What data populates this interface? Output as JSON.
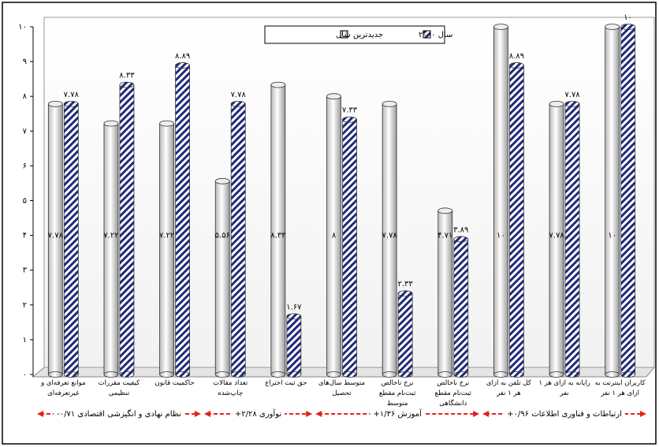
{
  "chart_data": {
    "type": "bar",
    "categories": [
      "موانع تعرفه‌ای و غیرتعرفه‌ای",
      "کیفیت مقررات تنظیمی",
      "حاکمیت قانون",
      "تعداد مقالات چاپ‌شده",
      "حق ثبت اختراع",
      "متوسط سال‌های تحصیل",
      "نرخ ناخالص ثبت‌نام مقطع متوسط",
      "نرخ ناخالص ثبت‌نام مقطع دانشگاهی",
      "کل تلفن به ازای هر ۱ نفر",
      "رایانه به ازای هر ۱ نفر",
      "کاربران اینترنت به ازای هر ۱ نفر"
    ],
    "series": [
      {
        "name": "جدیدترین سال",
        "color": "#ffffff",
        "values": [
          7.78,
          7.22,
          7.22,
          5.56,
          8.33,
          8,
          7.78,
          4.71,
          10,
          7.78,
          10
        ],
        "value_labels": [
          "۷.۷۸",
          "۷.۲۲",
          "۷.۲۲",
          "۵.۵۶",
          "۸.۳۳",
          "۸",
          "۷.۷۸",
          "۴.۷۱",
          "۱۰",
          "۷.۷۸",
          "۱۰"
        ]
      },
      {
        "name": "سال ۲۰۰۰",
        "color": "#1f2a7a",
        "values": [
          7.78,
          8.33,
          8.89,
          7.78,
          1.67,
          7.33,
          2.33,
          3.89,
          8.89,
          7.78,
          10
        ],
        "value_labels": [
          "۷.۷۸",
          "۸.۳۳",
          "۸.۸۹",
          "۷.۷۸",
          "۱.۶۷",
          "۷.۳۳",
          "۲.۳۳",
          "۳.۸۹",
          "۸.۸۹",
          "۷.۷۸",
          "۱۰"
        ]
      }
    ],
    "groups": [
      "نظام نهادی و انگیزشی اقتصادی ۰/۷۱-",
      "نوآوری ۲/۲۸+",
      "آموزش ۱/۳۶+",
      "ارتباطات و فناوری اطلاعات ۰/۹۶+"
    ],
    "ylim": [
      0,
      10
    ],
    "yticks": [
      {
        "value": 0,
        "label": "۰"
      },
      {
        "value": 1,
        "label": "۱"
      },
      {
        "value": 2,
        "label": "۲"
      },
      {
        "value": 3,
        "label": "۳"
      },
      {
        "value": 4,
        "label": "۴"
      },
      {
        "value": 5,
        "label": "۵"
      },
      {
        "value": 6,
        "label": "۶"
      },
      {
        "value": 7,
        "label": "۷"
      },
      {
        "value": 8,
        "label": "۸"
      },
      {
        "value": 9,
        "label": "۹"
      },
      {
        "value": 10,
        "label": "۱۰"
      }
    ],
    "grid": false,
    "legend": "top"
  }
}
